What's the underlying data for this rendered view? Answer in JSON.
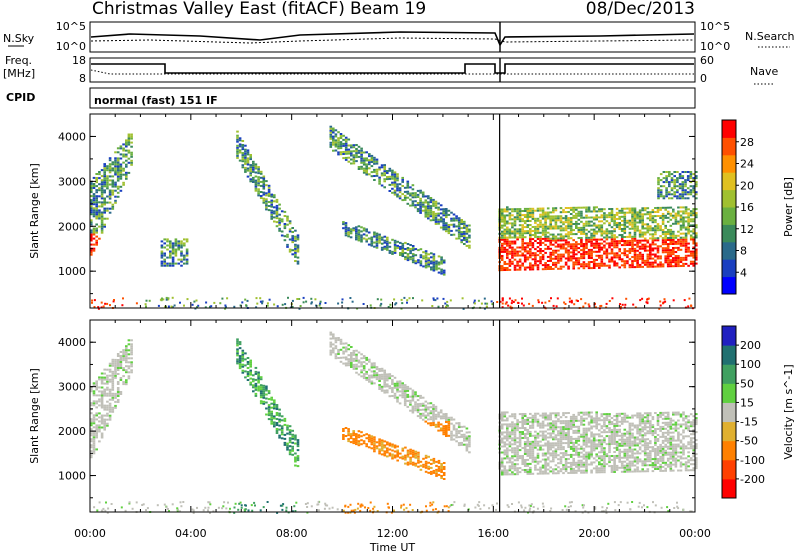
{
  "header": {
    "station": "Christmas Valley East (fitACF)",
    "beam": "Beam 19",
    "date": "08/Dec/2013"
  },
  "noise_panel": {
    "left_label": "N.Sky",
    "left_ticks": [
      "10^5",
      "10^0"
    ],
    "right_label": "N.Search",
    "right_ticks": [
      "10^5",
      "10^0"
    ]
  },
  "freq_panel": {
    "left_label_line1": "Freq.",
    "left_label_line2": "[MHz]",
    "left_ticks": [
      "18",
      "8"
    ],
    "right_label": "Nave",
    "right_ticks": [
      "60",
      "0"
    ]
  },
  "cpid": {
    "label": "CPID",
    "value": "normal (fast) 151 IF"
  },
  "chart_data": [
    {
      "type": "heatmap",
      "name": "power",
      "xlabel": "Time UT",
      "ylabel": "Slant Range [km]",
      "xlim_hours": [
        0,
        24
      ],
      "ylim": [
        180,
        4500
      ],
      "x_ticks": [
        "00:00",
        "04:00",
        "08:00",
        "12:00",
        "16:00",
        "20:00",
        "00:00"
      ],
      "y_ticks": [
        "1000",
        "2000",
        "3000",
        "4000"
      ],
      "colorbar": {
        "title": "Power [dB]",
        "range": [
          0,
          30
        ],
        "ticks": [
          "4",
          "8",
          "12",
          "16",
          "20",
          "24",
          "28"
        ],
        "colors": [
          "#0000ff",
          "#1a3fc0",
          "#2a6a8a",
          "#3a8a5a",
          "#6ab040",
          "#a0c030",
          "#e0c020",
          "#ff9000",
          "#ff5000",
          "#ff0000"
        ]
      },
      "regions": [
        {
          "t0": 0.0,
          "t1": 1.6,
          "r_start0": 1300,
          "r_end0": 3000,
          "r_start1": 3300,
          "r_end1": 4100
        },
        {
          "t0": 2.8,
          "t1": 3.8,
          "r_start0": 1100,
          "r_end0": 1700,
          "r_start1": 1100,
          "r_end1": 1700
        },
        {
          "t0": 5.8,
          "t1": 8.2,
          "r_start0": 3500,
          "r_end0": 4100,
          "r_start1": 1100,
          "r_end1": 1800
        },
        {
          "t0": 9.5,
          "t1": 15.0,
          "r_start0": 3700,
          "r_end0": 4200,
          "r_start1": 1500,
          "r_end1": 2000
        },
        {
          "t0": 10.0,
          "t1": 14.0,
          "r_start0": 1800,
          "r_end0": 2100,
          "r_start1": 900,
          "r_end1": 1300
        },
        {
          "t0": 16.2,
          "t1": 24.0,
          "r_start0": 1000,
          "r_end0": 2400,
          "r_start1": 1100,
          "r_end1": 2400
        },
        {
          "t0": 22.5,
          "t1": 24.0,
          "r_start0": 2600,
          "r_end0": 3200,
          "r_start1": 2600,
          "r_end1": 3200
        }
      ]
    },
    {
      "type": "heatmap",
      "name": "velocity",
      "xlabel": "Time UT",
      "ylabel": "Slant Range [km]",
      "xlim_hours": [
        0,
        24
      ],
      "ylim": [
        180,
        4500
      ],
      "x_ticks": [
        "00:00",
        "04:00",
        "08:00",
        "12:00",
        "16:00",
        "20:00",
        "00:00"
      ],
      "y_ticks": [
        "1000",
        "2000",
        "3000",
        "4000"
      ],
      "colorbar": {
        "title": "Velocity [m s^-1]",
        "range": [
          -250,
          250
        ],
        "ticks": [
          "200",
          "100",
          "50",
          "15",
          "-15",
          "-50",
          "-100",
          "-200"
        ],
        "colors": [
          "#2020c0",
          "#207070",
          "#40a060",
          "#60d040",
          "#c0c0b8",
          "#e0b030",
          "#ff8000",
          "#ff4000",
          "#ff0000"
        ]
      },
      "regions": [
        {
          "t0": 0.0,
          "t1": 1.6,
          "r_start0": 1300,
          "r_end0": 3000,
          "r_start1": 3300,
          "r_end1": 4100
        },
        {
          "t0": 5.8,
          "t1": 8.2,
          "r_start0": 3500,
          "r_end0": 4100,
          "r_start1": 1100,
          "r_end1": 1800
        },
        {
          "t0": 9.5,
          "t1": 15.0,
          "r_start0": 3700,
          "r_end0": 4200,
          "r_start1": 1500,
          "r_end1": 2000
        },
        {
          "t0": 10.0,
          "t1": 14.0,
          "r_start0": 1800,
          "r_end0": 2100,
          "r_start1": 900,
          "r_end1": 1300
        },
        {
          "t0": 16.2,
          "t1": 24.0,
          "r_start0": 1000,
          "r_end0": 2400,
          "r_start1": 1100,
          "r_end1": 2400
        }
      ]
    }
  ]
}
